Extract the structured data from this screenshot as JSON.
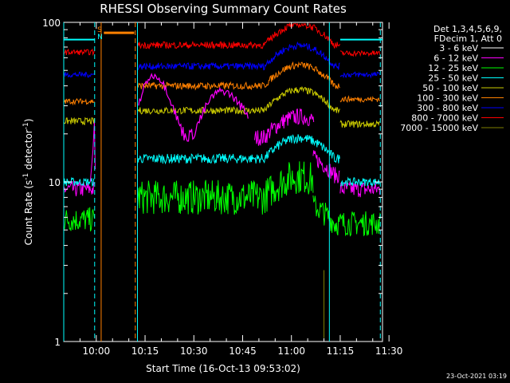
{
  "chart_data": {
    "type": "line",
    "title": "RHESSI Observing Summary Count Rates",
    "xlabel": "Start Time (16-Oct-13 09:53:02)",
    "ylabel_main": "Count Rate (s",
    "ylabel_sup": "-1",
    "ylabel_rest": " detector",
    "ylabel_sup2": "-1",
    "ylabel_end": ")",
    "y_scale": "log",
    "ylim": [
      1,
      100
    ],
    "xlim": [
      "09:53",
      "11:31"
    ],
    "x_ticks": [
      {
        "t": 600,
        "label": "10:00"
      },
      {
        "t": 1500,
        "label": "10:15"
      },
      {
        "t": 2400,
        "label": "10:30"
      },
      {
        "t": 3300,
        "label": "10:45"
      },
      {
        "t": 4200,
        "label": "11:00"
      },
      {
        "t": 5100,
        "label": "11:15"
      },
      {
        "t": 6000,
        "label": "11:30"
      }
    ],
    "y_ticks": [
      {
        "v": 1,
        "label": "1"
      },
      {
        "v": 10,
        "label": "10"
      },
      {
        "v": 100,
        "label": "100"
      }
    ],
    "legend_header": [
      "Det 1,3,4,5,6,9,",
      "FDecim 1, Att 0"
    ],
    "series": [
      {
        "name": "3 - 6 keV",
        "color": "#000000"
      },
      {
        "name": "6 - 12 keV",
        "color": "#ff00ff"
      },
      {
        "name": "12 - 25 keV",
        "color": "#00ff00"
      },
      {
        "name": "25 - 50 keV",
        "color": "#00ffff"
      },
      {
        "name": "50 - 100 keV",
        "color": "#cccc00"
      },
      {
        "name": "100 - 300 keV",
        "color": "#ff8000"
      },
      {
        "name": "300 - 800 keV",
        "color": "#0000ff"
      },
      {
        "name": "800 - 7000 keV",
        "color": "#ff0000"
      },
      {
        "name": "7000 - 15000 keV",
        "color": "#808000"
      }
    ],
    "markers": [
      {
        "label": "S",
        "color": "#ff8000"
      },
      {
        "label": "N",
        "color": "#00ffff"
      }
    ],
    "timestamp": "23-Oct-2021 03:19"
  }
}
